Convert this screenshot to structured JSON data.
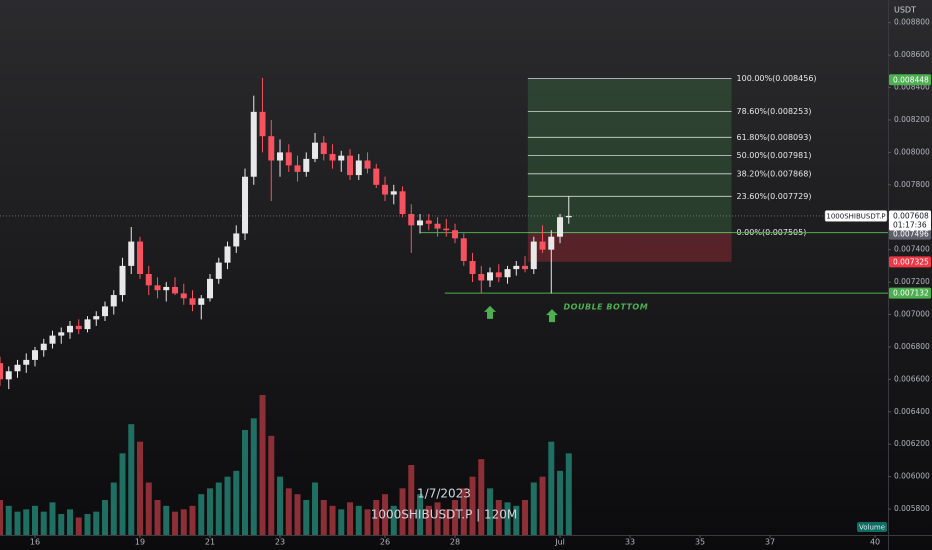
{
  "chart_data": {
    "type": "candlestick",
    "currency": "USDT",
    "symbol_title": "1000SHIBUSDT.P | 120M",
    "date_title": "1/7/2023",
    "volume_label": "Volume",
    "xlim": [
      15,
      40.37
    ],
    "xticks": [
      16,
      19,
      21,
      23,
      26,
      28,
      {
        "value": 31,
        "label": "Jul"
      },
      33,
      35,
      37,
      40
    ],
    "ylim": [
      0.00564,
      0.00894
    ],
    "yticks": [
      {
        "value": 0.0058,
        "label": "0.005800"
      },
      {
        "value": 0.006,
        "label": "0.006000"
      },
      {
        "value": 0.0062,
        "label": "0.006200"
      },
      {
        "value": 0.0064,
        "label": "0.006400"
      },
      {
        "value": 0.0066,
        "label": "0.006600"
      },
      {
        "value": 0.0068,
        "label": "0.006800"
      },
      {
        "value": 0.007,
        "label": "0.007000"
      },
      {
        "value": 0.0072,
        "label": "0.007200"
      },
      {
        "value": 0.0074,
        "label": "0.007400"
      },
      {
        "value": 0.0076,
        "label": "0.007600"
      },
      {
        "value": 0.0078,
        "label": "0.007800"
      },
      {
        "value": 0.008,
        "label": "0.008000"
      },
      {
        "value": 0.0082,
        "label": "0.008200"
      },
      {
        "value": 0.0084,
        "label": "0.008400"
      },
      {
        "value": 0.0086,
        "label": "0.008600"
      },
      {
        "value": 0.0088,
        "label": "0.008800"
      }
    ],
    "up_color": "#e8e8e8",
    "down_color": "#f7525f",
    "volume_up_color": "#1f6f63",
    "volume_down_color": "#8c2f37",
    "x": [
      15,
      15.25,
      15.5,
      15.75,
      16,
      16.25,
      16.5,
      16.75,
      17,
      17.25,
      17.5,
      17.75,
      18,
      18.25,
      18.5,
      18.75,
      19,
      19.25,
      19.5,
      19.75,
      20,
      20.25,
      20.5,
      20.75,
      21,
      21.25,
      21.5,
      21.75,
      22,
      22.25,
      22.5,
      22.75,
      23,
      23.25,
      23.5,
      23.75,
      24,
      24.25,
      24.5,
      24.75,
      25,
      25.25,
      25.5,
      25.75,
      26,
      26.25,
      26.5,
      26.75,
      27,
      27.25,
      27.5,
      27.75,
      28,
      28.25,
      28.5,
      28.75,
      29,
      29.25,
      29.5,
      29.75,
      30,
      30.25,
      30.5,
      30.75,
      31,
      31.25
    ],
    "open": [
      0.0067,
      0.0066,
      0.00665,
      0.00669,
      0.00672,
      0.00678,
      0.00682,
      0.00687,
      0.00689,
      0.00693,
      0.00691,
      0.00697,
      0.00699,
      0.00705,
      0.00712,
      0.0073,
      0.00745,
      0.00725,
      0.00718,
      0.00715,
      0.00717,
      0.00713,
      0.0071,
      0.00706,
      0.0071,
      0.00722,
      0.00732,
      0.00742,
      0.0075,
      0.00785,
      0.00825,
      0.0081,
      0.00795,
      0.008,
      0.00792,
      0.00788,
      0.00796,
      0.00806,
      0.00799,
      0.00795,
      0.00798,
      0.00786,
      0.00795,
      0.0079,
      0.0078,
      0.00774,
      0.00776,
      0.00762,
      0.00755,
      0.00758,
      0.00756,
      0.00753,
      0.00752,
      0.00747,
      0.00733,
      0.00725,
      0.00721,
      0.00726,
      0.00723,
      0.00728,
      0.0073,
      0.00728,
      0.00745,
      0.0074,
      0.00748,
      0.0076
    ],
    "high": [
      0.00674,
      0.00668,
      0.00672,
      0.00676,
      0.0068,
      0.00685,
      0.0069,
      0.00692,
      0.00696,
      0.00697,
      0.00699,
      0.00702,
      0.00708,
      0.00715,
      0.00735,
      0.00754,
      0.00748,
      0.0073,
      0.00723,
      0.0072,
      0.00723,
      0.00719,
      0.00715,
      0.00712,
      0.00725,
      0.00735,
      0.00745,
      0.00755,
      0.0079,
      0.00835,
      0.00846,
      0.0082,
      0.00808,
      0.00805,
      0.00798,
      0.008,
      0.00812,
      0.0081,
      0.00805,
      0.00801,
      0.00802,
      0.00799,
      0.008,
      0.00793,
      0.00785,
      0.0078,
      0.00779,
      0.00768,
      0.00762,
      0.00762,
      0.0076,
      0.00759,
      0.00756,
      0.0075,
      0.00738,
      0.0073,
      0.00729,
      0.00731,
      0.0073,
      0.00733,
      0.00736,
      0.00748,
      0.00755,
      0.00752,
      0.00762,
      0.00773
    ],
    "low": [
      0.00656,
      0.00654,
      0.00661,
      0.00664,
      0.00668,
      0.00674,
      0.00679,
      0.00682,
      0.00685,
      0.00688,
      0.00689,
      0.00693,
      0.00696,
      0.007,
      0.00708,
      0.00725,
      0.00722,
      0.00712,
      0.0071,
      0.00708,
      0.00712,
      0.00706,
      0.00702,
      0.00697,
      0.00708,
      0.00719,
      0.00728,
      0.00738,
      0.00746,
      0.0078,
      0.008,
      0.0077,
      0.00785,
      0.00788,
      0.00782,
      0.00785,
      0.00794,
      0.00795,
      0.0079,
      0.00788,
      0.00783,
      0.00783,
      0.00787,
      0.00778,
      0.0077,
      0.00768,
      0.0076,
      0.00738,
      0.0075,
      0.00752,
      0.00748,
      0.00748,
      0.00744,
      0.0073,
      0.0072,
      0.00713,
      0.00717,
      0.0072,
      0.00719,
      0.00724,
      0.00726,
      0.00725,
      0.00738,
      0.00713,
      0.00744,
      0.00756
    ],
    "close": [
      0.0066,
      0.00665,
      0.00669,
      0.00672,
      0.00678,
      0.00682,
      0.00687,
      0.00689,
      0.00693,
      0.00691,
      0.00697,
      0.00699,
      0.00705,
      0.00712,
      0.0073,
      0.00745,
      0.00725,
      0.00718,
      0.00715,
      0.00717,
      0.00713,
      0.0071,
      0.00706,
      0.0071,
      0.00722,
      0.00732,
      0.00742,
      0.0075,
      0.00785,
      0.00825,
      0.0081,
      0.00795,
      0.008,
      0.00792,
      0.00788,
      0.00796,
      0.00806,
      0.00799,
      0.00795,
      0.00798,
      0.00786,
      0.00795,
      0.0079,
      0.0078,
      0.00774,
      0.00776,
      0.00762,
      0.00755,
      0.00758,
      0.00756,
      0.00753,
      0.00752,
      0.00747,
      0.00733,
      0.00725,
      0.00721,
      0.00726,
      0.00723,
      0.00728,
      0.0073,
      0.00728,
      0.00745,
      0.0074,
      0.00748,
      0.0076,
      0.007608
    ],
    "volume": [
      30,
      25,
      20,
      22,
      25,
      20,
      28,
      18,
      22,
      15,
      18,
      20,
      30,
      45,
      70,
      95,
      80,
      45,
      30,
      25,
      20,
      22,
      25,
      35,
      40,
      45,
      50,
      55,
      90,
      100,
      120,
      85,
      50,
      40,
      35,
      30,
      45,
      30,
      25,
      22,
      28,
      25,
      22,
      30,
      35,
      25,
      40,
      60,
      35,
      25,
      28,
      22,
      30,
      40,
      50,
      65,
      40,
      30,
      28,
      25,
      30,
      45,
      50,
      80,
      55,
      70
    ],
    "fibonacci": {
      "x": [
        30.08,
        35.9
      ],
      "stop": 0.007325,
      "levels": [
        {
          "label": "100.00%(0.008456)",
          "value": 0.008456
        },
        {
          "label": "78.60%(0.008253)",
          "value": 0.008253
        },
        {
          "label": "61.80%(0.008093)",
          "value": 0.008093
        },
        {
          "label": "50.00%(0.007981)",
          "value": 0.007981
        },
        {
          "label": "38.20%(0.007868)",
          "value": 0.007868
        },
        {
          "label": "23.60%(0.007729)",
          "value": 0.007729
        },
        {
          "label": "0.00%(0.007505)",
          "value": 0.007505
        }
      ]
    },
    "support_lines": [
      {
        "value": 0.007505,
        "x_start": 27.0
      },
      {
        "value": 0.007132,
        "x_start": 27.71
      }
    ],
    "annotation": {
      "text": "DOUBLE BOTTOM",
      "x": 31.1,
      "y": 0.007046
    },
    "arrows": [
      {
        "x": 29.0,
        "y": 0.00701
      },
      {
        "x": 30.77,
        "y": 0.00699
      }
    ],
    "last_price": {
      "symbol": "1000SHIBUSDT.P",
      "value": 0.007608,
      "countdown": "01:17:36"
    },
    "price_labels": [
      {
        "value": 0.008448,
        "color": "#4caf50"
      },
      {
        "value": 0.007505,
        "color": "#4caf50"
      },
      {
        "value": 0.007496,
        "color": "#5d606b"
      },
      {
        "value": 0.007325,
        "color": "#f23645"
      },
      {
        "value": 0.007132,
        "color": "#4caf50"
      }
    ]
  }
}
